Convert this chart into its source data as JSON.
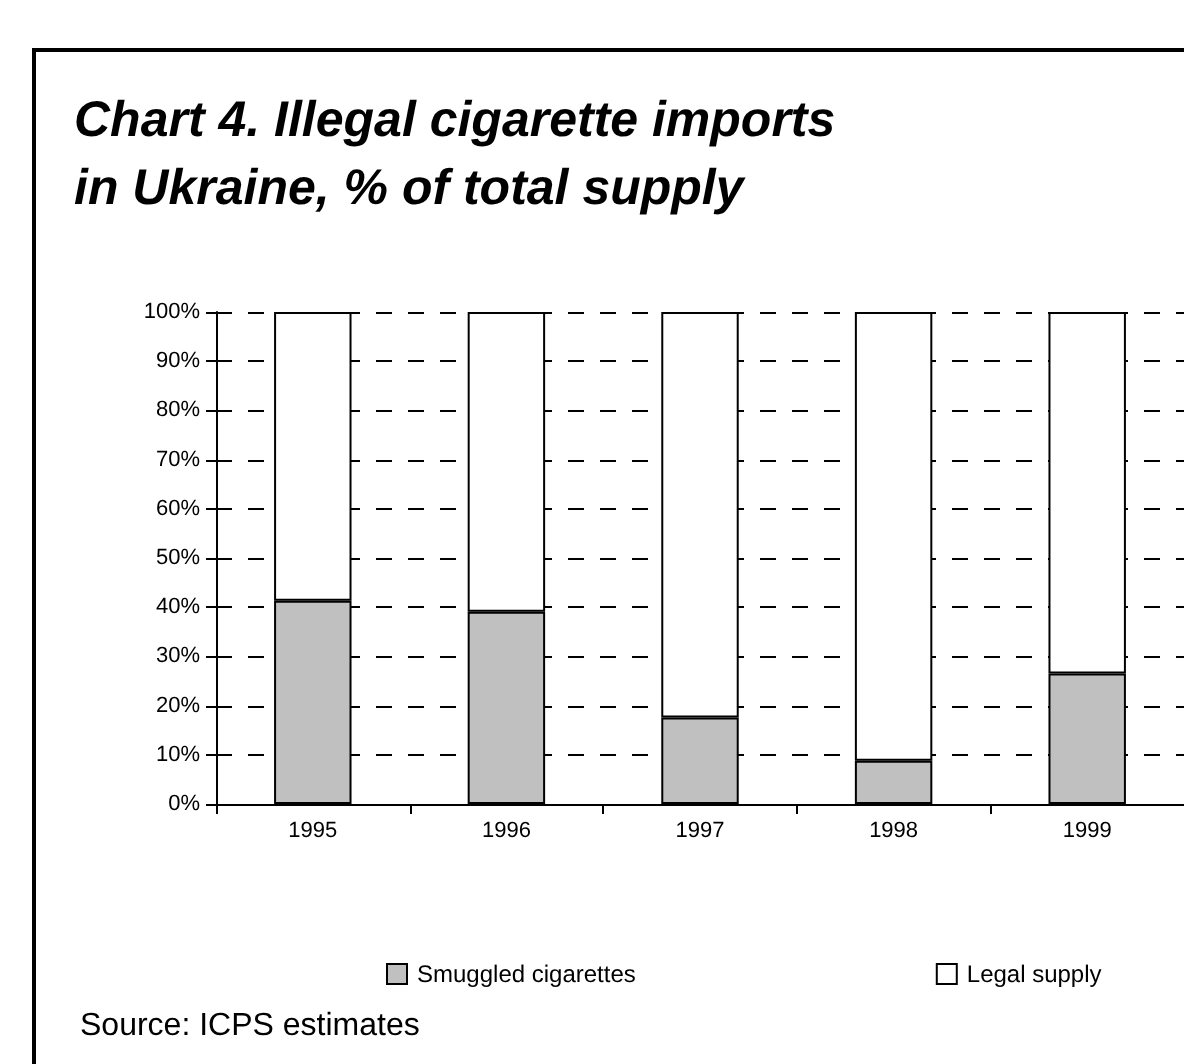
{
  "chart_data": {
    "type": "bar",
    "title": "Chart 4. Illegal cigarette imports\nin Ukraine, % of total supply",
    "categories": [
      "1995",
      "1996",
      "1997",
      "1998",
      "1999"
    ],
    "stacked": true,
    "series": [
      {
        "name": "Smuggled cigarettes",
        "color": "#c0c0c0",
        "values": [
          41.3,
          39.1,
          17.6,
          8.8,
          26.5
        ]
      },
      {
        "name": "Legal supply",
        "color": "#ffffff",
        "values": [
          58.7,
          60.9,
          82.4,
          91.2,
          73.5
        ]
      }
    ],
    "ylim": [
      0,
      100
    ],
    "yticks": [
      {
        "value": 0,
        "label": "0%"
      },
      {
        "value": 10,
        "label": "10%"
      },
      {
        "value": 20,
        "label": "20%"
      },
      {
        "value": 30,
        "label": "30%"
      },
      {
        "value": 40,
        "label": "40%"
      },
      {
        "value": 50,
        "label": "50%"
      },
      {
        "value": 60,
        "label": "60%"
      },
      {
        "value": 70,
        "label": "70%"
      },
      {
        "value": 80,
        "label": "80%"
      },
      {
        "value": 90,
        "label": "90%"
      },
      {
        "value": 100,
        "label": "100%"
      }
    ],
    "grid": "y",
    "legend": "bottom",
    "annotations": [
      "Source: ICPS estimates"
    ]
  }
}
